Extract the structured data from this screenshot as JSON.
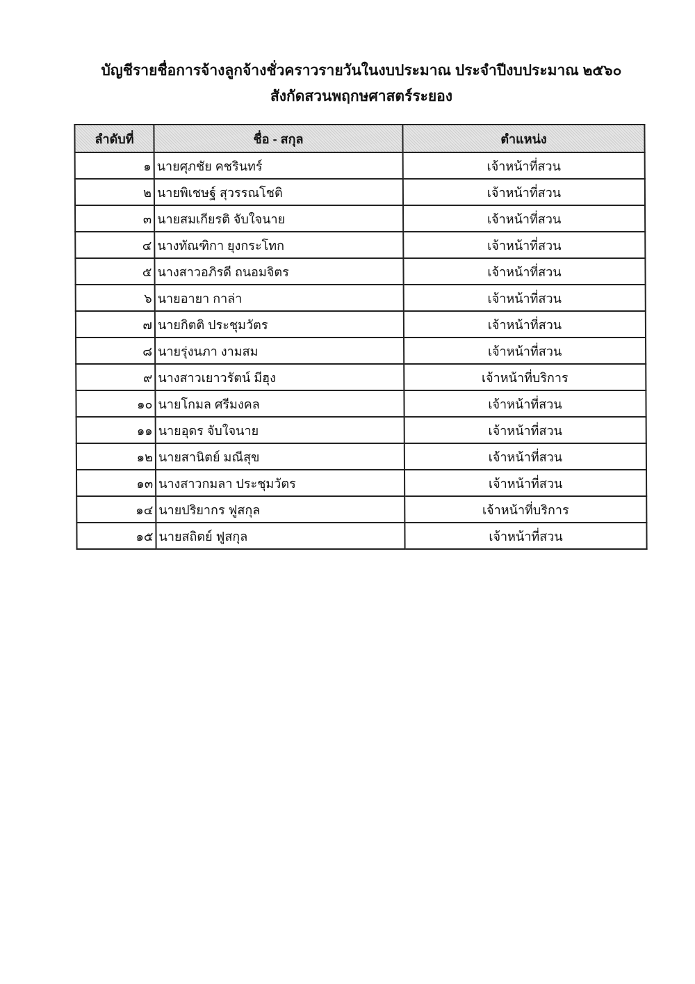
{
  "title": "บัญชีรายชื่อการจ้างลูกจ้างชั่วคราวรายวันในงบประมาณ ประจำปีงบประมาณ ๒๕๖๐",
  "subtitle": "สังกัดสวนพฤกษศาสตร์ระยอง",
  "table": {
    "headers": [
      "ลำดับที่",
      "ชื่อ - สกุล",
      "ตำแหน่ง"
    ],
    "rows": [
      {
        "no": "๑",
        "name": "นายศุภชัย คชรินทร์",
        "position": "เจ้าหน้าที่สวน"
      },
      {
        "no": "๒",
        "name": "นายพิเชษฐ์  สุวรรณโชติ",
        "position": "เจ้าหน้าที่สวน"
      },
      {
        "no": "๓",
        "name": "นายสมเกียรติ  จับใจนาย",
        "position": "เจ้าหน้าที่สวน"
      },
      {
        "no": "๔",
        "name": "นางทัณฑิกา  ยุงกระโทก",
        "position": "เจ้าหน้าที่สวน"
      },
      {
        "no": "๕",
        "name": "นางสาวอภิรดี ถนอมจิตร",
        "position": "เจ้าหน้าที่สวน"
      },
      {
        "no": "๖",
        "name": "นายอายา กาล่า",
        "position": "เจ้าหน้าที่สวน"
      },
      {
        "no": "๗",
        "name": "นายกิตติ  ประชุมวัตร",
        "position": "เจ้าหน้าที่สวน"
      },
      {
        "no": "๘",
        "name": "นายรุ่งนภา งามสม",
        "position": "เจ้าหน้าที่สวน"
      },
      {
        "no": "๙",
        "name": "นางสาวเยาวรัตน์ มีฮุง",
        "position": "เจ้าหน้าที่บริการ"
      },
      {
        "no": "๑๐",
        "name": "นายโกมล  ศรีมงคล",
        "position": "เจ้าหน้าที่สวน"
      },
      {
        "no": "๑๑",
        "name": "นายอุดร  จับใจนาย",
        "position": "เจ้าหน้าที่สวน"
      },
      {
        "no": "๑๒",
        "name": "นายสานิตย์  มณีสุข",
        "position": "เจ้าหน้าที่สวน"
      },
      {
        "no": "๑๓",
        "name": "นางสาวกมลา  ประชุมวัตร",
        "position": "เจ้าหน้าที่สวน"
      },
      {
        "no": "๑๔",
        "name": "นายปริยากร  ฟูสกุล",
        "position": "เจ้าหน้าที่บริการ"
      },
      {
        "no": "๑๕",
        "name": "นายสถิตย์  ฟูสกุล",
        "position": "เจ้าหน้าที่สวน"
      }
    ]
  }
}
